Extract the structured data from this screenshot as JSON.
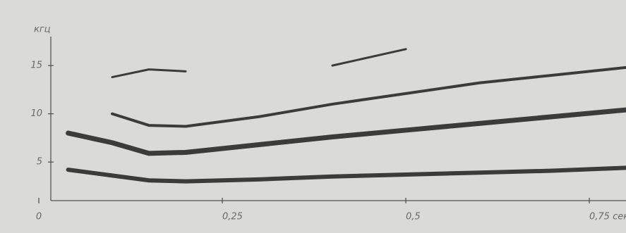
{
  "chart_data": {
    "type": "line",
    "ylabel": "кгц",
    "x": [
      0.04,
      0.1,
      0.15,
      0.2,
      0.3,
      0.4,
      0.5,
      0.6,
      0.7,
      0.8
    ],
    "series": [
      {
        "color": "#3b3b3b",
        "values": [
          4.2,
          3.6,
          3.1,
          3.0,
          3.2,
          3.5,
          3.7,
          3.9,
          4.1,
          4.4
        ]
      },
      {
        "color": "#3b3b3b",
        "values": [
          8.0,
          7.0,
          5.9,
          6.0,
          6.8,
          7.6,
          8.3,
          9.0,
          9.7,
          10.4
        ]
      },
      {
        "color": "#3b3b3b",
        "values": [
          null,
          10.0,
          8.8,
          8.7,
          9.7,
          11.0,
          12.1,
          13.2,
          14.0,
          14.8
        ]
      },
      {
        "color": "#3b3b3b",
        "values": [
          null,
          13.8,
          14.6,
          14.4,
          null,
          15.0,
          16.7,
          null,
          null,
          null
        ]
      }
    ],
    "xlim": [
      0,
      0.8
    ],
    "ylim": [
      1,
      18
    ],
    "xticks": [
      0,
      {
        "value": 0.25,
        "label": "0,25"
      },
      {
        "value": 0.5,
        "label": "0,5"
      },
      {
        "value": 0.75,
        "label": "0,75 сек"
      }
    ],
    "yticks": [
      5,
      10,
      15
    ]
  }
}
